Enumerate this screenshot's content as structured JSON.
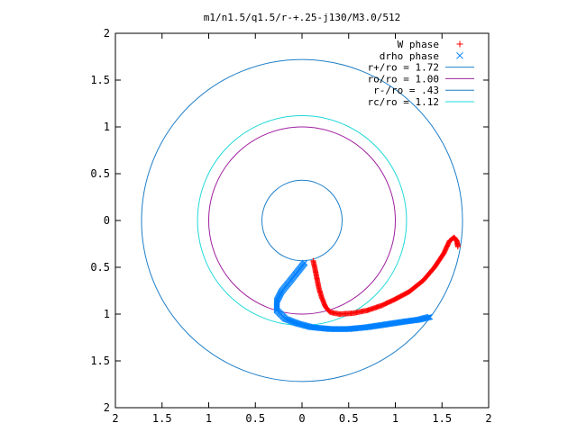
{
  "chart_data": {
    "type": "scatter",
    "title": "m1/n1.5/q1.5/r-+.25-j130/M3.0/512",
    "xlabel": "",
    "ylabel": "",
    "xlim": [
      -2,
      2
    ],
    "ylim": [
      -2,
      2
    ],
    "x_ticks": [
      {
        "value": -2,
        "label": "2"
      },
      {
        "value": -1.5,
        "label": "1.5"
      },
      {
        "value": -1,
        "label": "1"
      },
      {
        "value": -0.5,
        "label": "0.5"
      },
      {
        "value": 0,
        "label": "0"
      },
      {
        "value": 0.5,
        "label": "0.5"
      },
      {
        "value": 1,
        "label": "1"
      },
      {
        "value": 1.5,
        "label": "1.5"
      },
      {
        "value": 2,
        "label": "2"
      }
    ],
    "y_ticks": [
      {
        "value": 2,
        "label": "2"
      },
      {
        "value": 1.5,
        "label": "1.5"
      },
      {
        "value": 1,
        "label": "1"
      },
      {
        "value": 0.5,
        "label": "0.5"
      },
      {
        "value": 0,
        "label": "0"
      },
      {
        "value": -0.5,
        "label": "0.5"
      },
      {
        "value": -1,
        "label": "1"
      },
      {
        "value": -1.5,
        "label": "1.5"
      },
      {
        "value": -2,
        "label": "2"
      }
    ],
    "grid": false,
    "legend_position": "top-right",
    "series": [
      {
        "name": "W phase",
        "kind": "points",
        "marker": "plus",
        "color": "#ff0000",
        "points": [
          [
            0.12,
            -0.43
          ],
          [
            0.14,
            -0.52
          ],
          [
            0.16,
            -0.62
          ],
          [
            0.18,
            -0.72
          ],
          [
            0.21,
            -0.82
          ],
          [
            0.25,
            -0.92
          ],
          [
            0.3,
            -0.98
          ],
          [
            0.4,
            -1.0
          ],
          [
            0.55,
            -0.99
          ],
          [
            0.7,
            -0.96
          ],
          [
            0.85,
            -0.91
          ],
          [
            1.0,
            -0.84
          ],
          [
            1.15,
            -0.76
          ],
          [
            1.3,
            -0.64
          ],
          [
            1.42,
            -0.5
          ],
          [
            1.52,
            -0.35
          ],
          [
            1.58,
            -0.22
          ],
          [
            1.63,
            -0.18
          ],
          [
            1.66,
            -0.22
          ],
          [
            1.67,
            -0.28
          ]
        ]
      },
      {
        "name": "drho phase",
        "kind": "points",
        "marker": "x",
        "color": "#0080ff",
        "points": [
          [
            0.03,
            -0.45
          ],
          [
            -0.05,
            -0.55
          ],
          [
            -0.13,
            -0.65
          ],
          [
            -0.22,
            -0.76
          ],
          [
            -0.27,
            -0.86
          ],
          [
            -0.27,
            -0.96
          ],
          [
            -0.18,
            -1.05
          ],
          [
            -0.05,
            -1.1
          ],
          [
            0.1,
            -1.14
          ],
          [
            0.3,
            -1.16
          ],
          [
            0.5,
            -1.16
          ],
          [
            0.7,
            -1.14
          ],
          [
            0.9,
            -1.11
          ],
          [
            1.1,
            -1.08
          ],
          [
            1.25,
            -1.06
          ],
          [
            1.37,
            -1.03
          ]
        ]
      },
      {
        "name": "r+/ro = 1.72",
        "kind": "circle",
        "radius": 1.72,
        "color": "#1f7fc8"
      },
      {
        "name": "ro/ro = 1.00",
        "kind": "circle",
        "radius": 1.0,
        "color": "#a020a0"
      },
      {
        "name": "r-/ro = .43",
        "kind": "circle",
        "radius": 0.43,
        "color": "#1f7fc8"
      },
      {
        "name": "rc/ro = 1.12",
        "kind": "circle",
        "radius": 1.12,
        "color": "#20d8d8"
      }
    ]
  }
}
